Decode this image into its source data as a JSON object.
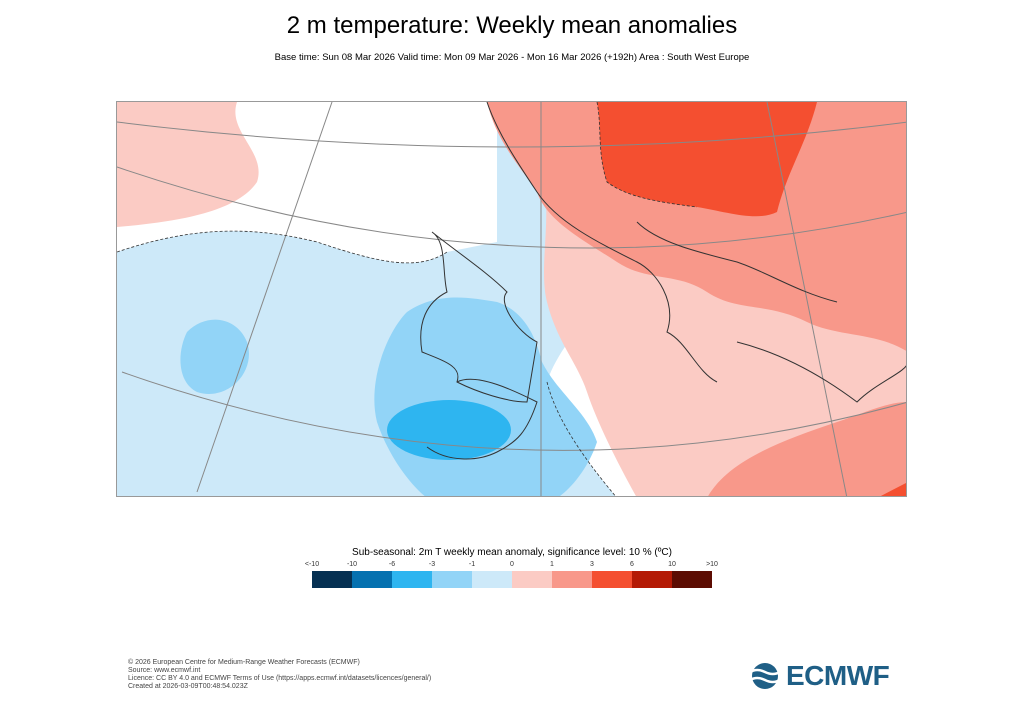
{
  "header": {
    "title": "2 m temperature: Weekly mean anomalies",
    "subtitle": "Base time: Sun 08 Mar 2026 Valid time: Mon 09 Mar 2026 - Mon 16 Mar 2026 (+192h) Area : South West Europe"
  },
  "map": {
    "area": "South West Europe",
    "colors": {
      "strong_cold": "#2eb5f0",
      "cold": "#92d4f7",
      "slight_cold": "#cde9f9",
      "neutral": "#ffffff",
      "slight_warm": "#fbcbc4",
      "warm": "#f8988a",
      "strong_warm": "#f44f30",
      "very_warm": "#b41a05"
    }
  },
  "legend": {
    "title": "Sub-seasonal: 2m T weekly mean anomaly, significance level: 10 % (ºC)",
    "labels": [
      "<-10",
      "-10",
      "-6",
      "-3",
      "-1",
      "0",
      "1",
      "3",
      "6",
      "10",
      ">10"
    ],
    "colors": [
      "#053052",
      "#0571b0",
      "#2eb5f0",
      "#92d4f7",
      "#cde9f9",
      "#fbcbc4",
      "#f8988a",
      "#f44f30",
      "#b41a05",
      "#5c0c02"
    ]
  },
  "footer": {
    "lines": [
      "© 2026 European Centre for Medium-Range Weather Forecasts (ECMWF)",
      "Source: www.ecmwf.int",
      "Licence: CC BY 4.0 and ECMWF Terms of Use (https://apps.ecmwf.int/datasets/licences/general/)",
      "Created at 2026-03-09T00:48:54.023Z"
    ]
  },
  "logo": {
    "text": "ECMWF",
    "color": "#1f5f86"
  }
}
